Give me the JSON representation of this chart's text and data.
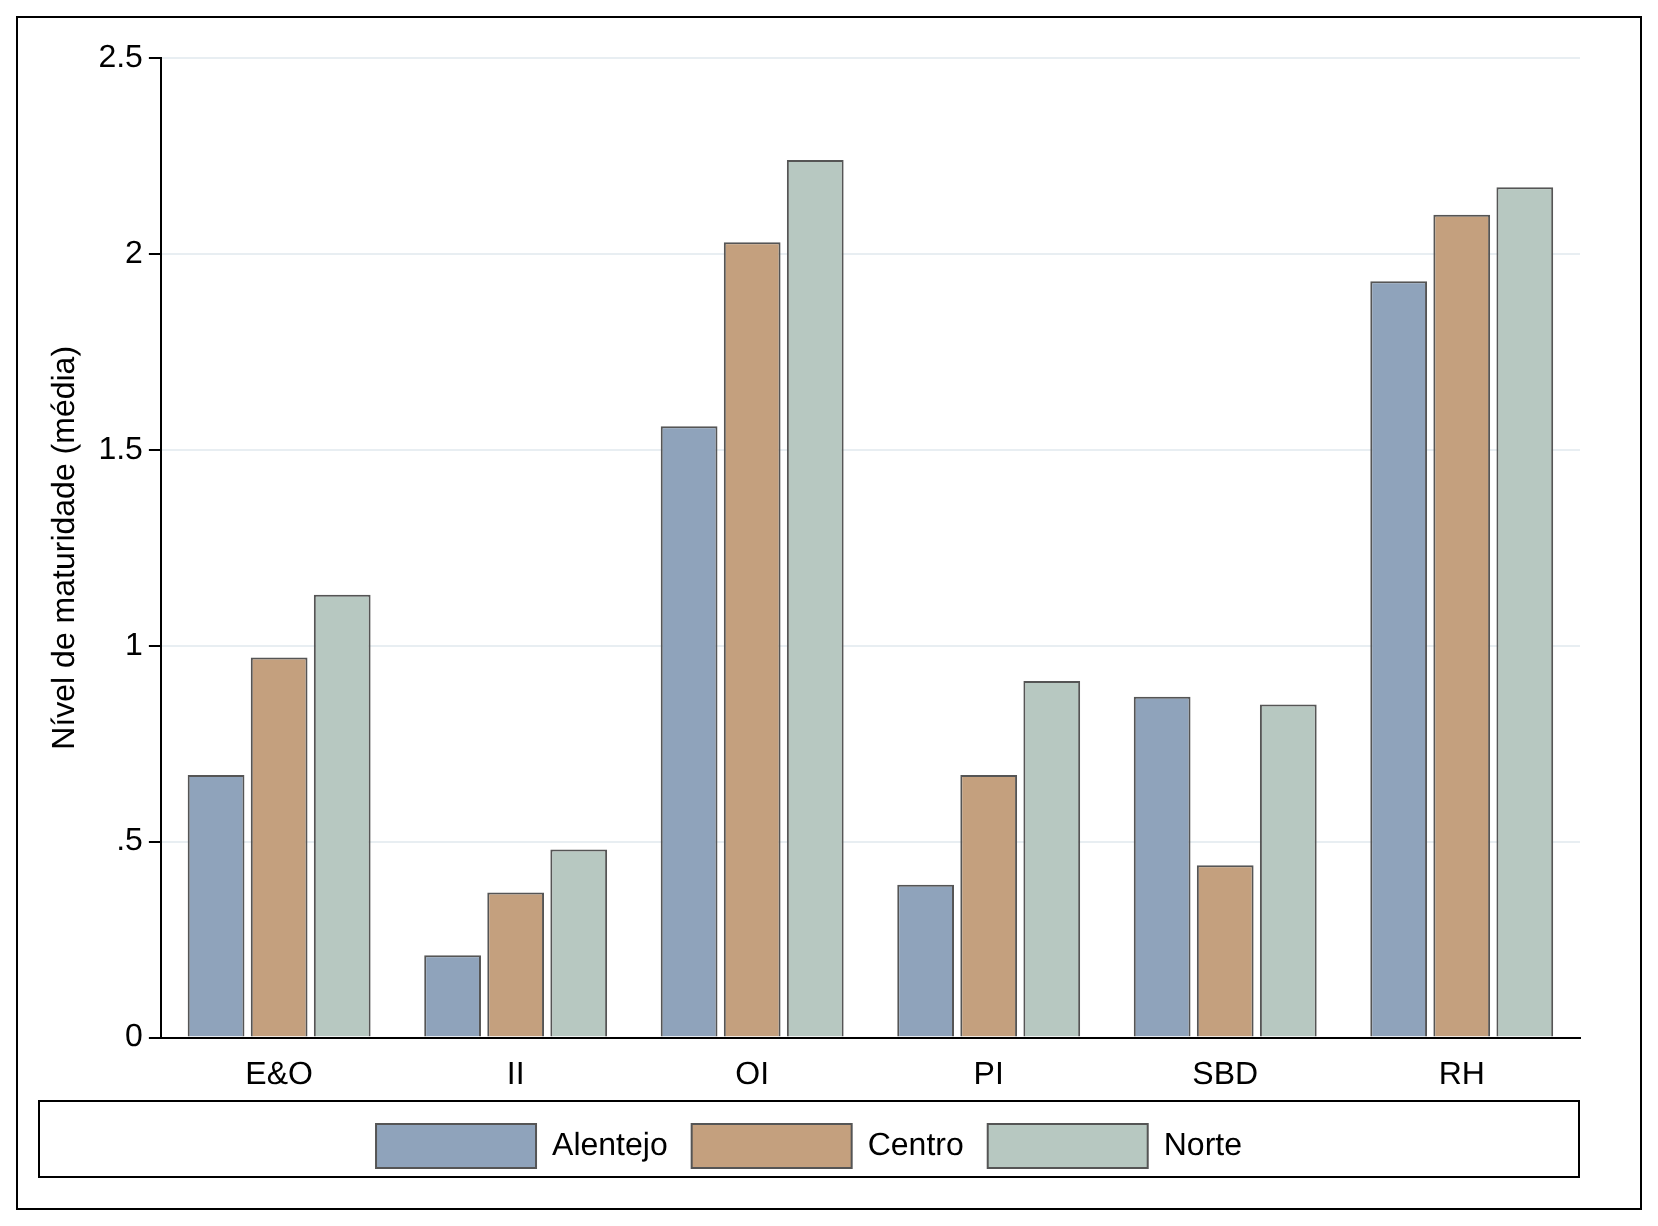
{
  "chart_data": {
    "type": "bar",
    "ylabel": "Nível de maturidade (média)",
    "categories": [
      "E&O",
      "II",
      "OI",
      "PI",
      "SBD",
      "RH"
    ],
    "series": [
      {
        "name": "Alentejo",
        "color": "#8fa3bb",
        "values": [
          0.67,
          0.21,
          1.56,
          0.39,
          0.87,
          1.93
        ]
      },
      {
        "name": "Centro",
        "color": "#c4a07e",
        "values": [
          0.97,
          0.37,
          2.03,
          0.67,
          0.44,
          2.1
        ]
      },
      {
        "name": "Norte",
        "color": "#b7c8c1",
        "values": [
          1.13,
          0.48,
          2.24,
          0.91,
          0.85,
          2.17
        ]
      }
    ],
    "ylim": [
      0,
      2.5
    ],
    "yticks": [
      0,
      {
        "value": 0.5,
        "label": ".5"
      },
      1,
      1.5,
      2,
      2.5
    ],
    "grid": "y",
    "legend": "bottom"
  }
}
